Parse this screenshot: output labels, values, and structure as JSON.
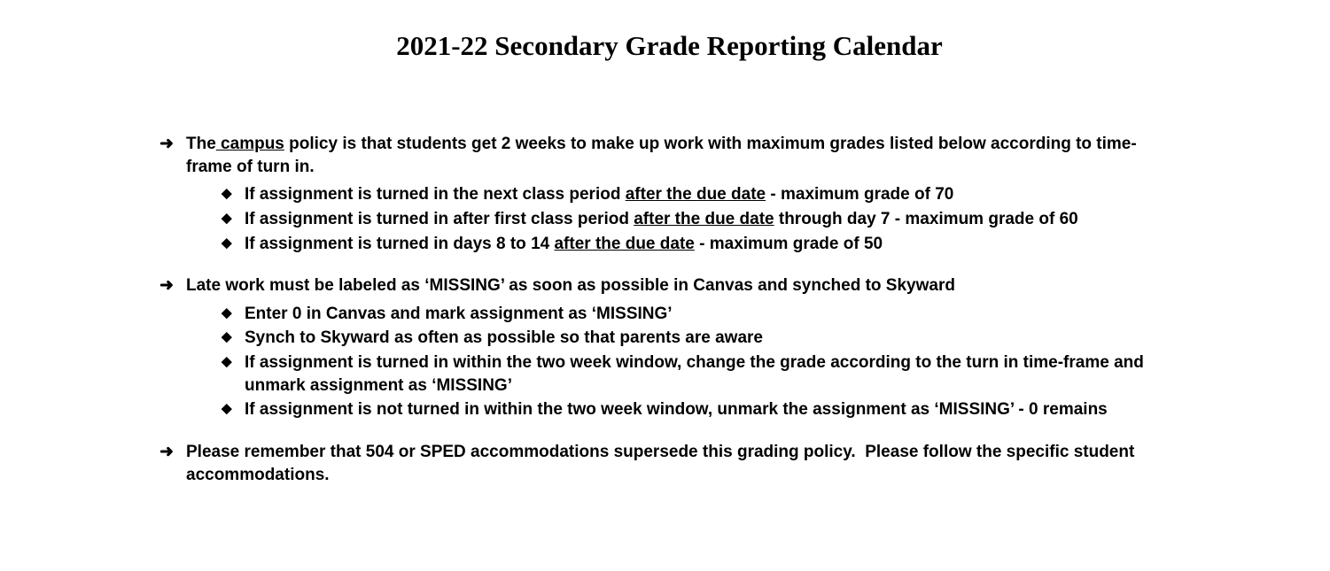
{
  "title": "2021-22 Secondary Grade Reporting Calendar",
  "section1": {
    "lead_before_underline": "The",
    "lead_underline": " campus",
    "lead_after_underline": " policy is that students get 2 weeks to make up work with maximum grades listed below according to time-frame of turn in.",
    "bullets": [
      {
        "pre": "If assignment is turned in the next class period ",
        "u": "after the due date",
        "post": " - maximum grade of 70"
      },
      {
        "pre": "If assignment is turned in after first class period ",
        "u": "after the due date",
        "post": " through day 7 - maximum grade of 60"
      },
      {
        "pre": "If assignment is turned in days 8 to 14 ",
        "u": "after the due date",
        "post": " - maximum grade of 50"
      }
    ]
  },
  "section2": {
    "lead": "Late work must be labeled as ‘MISSING’ as soon as possible in Canvas and synched to Skyward",
    "bullets": [
      "Enter 0 in Canvas and mark assignment as ‘MISSING’",
      "Synch to Skyward as often as possible so that parents are aware",
      "If assignment is turned in within the two week window, change the grade according to the turn in time-frame and unmark assignment as ‘MISSING’",
      "If assignment is not turned in within the two week window, unmark the assignment as ‘MISSING’ - 0 remains"
    ]
  },
  "section3": {
    "lead": "Please remember that 504 or SPED accommodations supersede this grading policy.  Please follow the specific student accommodations."
  }
}
